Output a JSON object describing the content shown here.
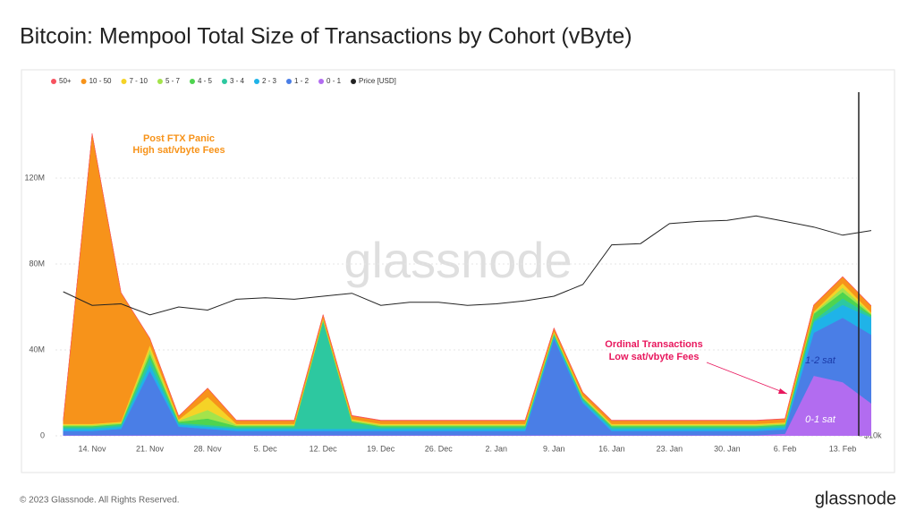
{
  "chart_data": {
    "type": "area",
    "title": "Bitcoin: Mempool Total Size of Transactions by Cohort (vByte)",
    "categories": [
      null,
      "14. Nov",
      null,
      "21. Nov",
      null,
      "28. Nov",
      null,
      "5. Dec",
      null,
      "12. Dec",
      null,
      "19. Dec",
      null,
      "26. Dec",
      null,
      "2. Jan",
      null,
      "9. Jan",
      null,
      "16. Jan",
      null,
      "23. Jan",
      null,
      "30. Jan",
      null,
      "6. Feb",
      null,
      "13. Feb",
      null
    ],
    "series": [
      {
        "name": "50+",
        "color": "#f7525f",
        "values": [
          200000,
          200000,
          200000,
          200000,
          200000,
          200000,
          200000,
          200000,
          200000,
          200000,
          200000,
          200000,
          200000,
          200000,
          200000,
          200000,
          200000,
          200000,
          200000,
          200000,
          200000,
          200000,
          200000,
          200000,
          200000,
          200000,
          200000,
          200000,
          200000
        ]
      },
      {
        "name": "10 - 50",
        "color": "#f7931a",
        "values": [
          1500000,
          135000000,
          60000000,
          3000000,
          1500000,
          4000000,
          1500000,
          1500000,
          1500000,
          1500000,
          1500000,
          1500000,
          1500000,
          1500000,
          1500000,
          1500000,
          1500000,
          1500000,
          1500000,
          1500000,
          1500000,
          1500000,
          1500000,
          1500000,
          1500000,
          1500000,
          3000000,
          3000000,
          3000000
        ]
      },
      {
        "name": "7 - 10",
        "color": "#f5d327",
        "values": [
          500000,
          500000,
          500000,
          2000000,
          500000,
          6000000,
          500000,
          500000,
          500000,
          500000,
          500000,
          500000,
          500000,
          500000,
          500000,
          500000,
          500000,
          500000,
          500000,
          500000,
          500000,
          500000,
          500000,
          500000,
          500000,
          500000,
          500000,
          2000000,
          500000
        ]
      },
      {
        "name": "5 - 7",
        "color": "#a4e34b",
        "values": [
          500000,
          500000,
          500000,
          2000000,
          500000,
          4000000,
          500000,
          500000,
          500000,
          500000,
          500000,
          500000,
          500000,
          500000,
          500000,
          500000,
          500000,
          500000,
          500000,
          500000,
          500000,
          500000,
          500000,
          500000,
          500000,
          500000,
          500000,
          2000000,
          500000
        ]
      },
      {
        "name": "4 - 5",
        "color": "#4ed44f",
        "values": [
          500000,
          500000,
          500000,
          2000000,
          500000,
          3000000,
          500000,
          500000,
          500000,
          500000,
          500000,
          500000,
          500000,
          500000,
          500000,
          500000,
          500000,
          500000,
          500000,
          500000,
          500000,
          500000,
          500000,
          500000,
          500000,
          500000,
          3000000,
          3000000,
          500000
        ]
      },
      {
        "name": "3 - 4",
        "color": "#2dc8a0",
        "values": [
          800000,
          800000,
          800000,
          3000000,
          800000,
          800000,
          800000,
          800000,
          800000,
          50000000,
          3000000,
          800000,
          800000,
          800000,
          800000,
          800000,
          800000,
          800000,
          800000,
          800000,
          800000,
          800000,
          800000,
          800000,
          800000,
          800000,
          800000,
          3000000,
          800000
        ]
      },
      {
        "name": "2 - 3",
        "color": "#1fb3e8",
        "values": [
          1000000,
          1000000,
          1000000,
          3000000,
          1000000,
          1000000,
          1000000,
          1000000,
          1000000,
          1000000,
          1000000,
          1000000,
          1000000,
          1000000,
          1000000,
          1000000,
          1000000,
          1000000,
          1000000,
          1000000,
          1000000,
          1000000,
          1000000,
          1000000,
          1000000,
          1000000,
          5000000,
          6000000,
          8000000
        ]
      },
      {
        "name": "1 - 2",
        "color": "#4a7ee6",
        "values": [
          2000000,
          2000000,
          3000000,
          30000000,
          4000000,
          3000000,
          2000000,
          2000000,
          2000000,
          2000000,
          2000000,
          2000000,
          2000000,
          2000000,
          2000000,
          2000000,
          2000000,
          45000000,
          15000000,
          2000000,
          2000000,
          2000000,
          2000000,
          2000000,
          2000000,
          2000000,
          20000000,
          30000000,
          32000000
        ]
      },
      {
        "name": "0 - 1",
        "color": "#b26cf0",
        "values": [
          300000,
          300000,
          300000,
          300000,
          300000,
          300000,
          300000,
          300000,
          300000,
          300000,
          300000,
          300000,
          300000,
          300000,
          300000,
          300000,
          300000,
          300000,
          300000,
          300000,
          300000,
          300000,
          300000,
          300000,
          300000,
          1000000,
          28000000,
          25000000,
          15000000
        ]
      },
      {
        "name": "Price [USD]",
        "color": "#222222",
        "axis": "y2",
        "values": [
          17500,
          16600,
          16700,
          16000,
          16500,
          16300,
          17000,
          17100,
          17000,
          17200,
          17400,
          16600,
          16800,
          16800,
          16600,
          16700,
          16900,
          17200,
          18000,
          21000,
          21100,
          22800,
          23000,
          23100,
          23500,
          23000,
          22500,
          21800,
          22200
        ]
      }
    ],
    "ylim": [
      0,
      160000000
    ],
    "yticks": [
      0,
      {
        "value": 40000000,
        "label": "40M"
      },
      {
        "value": 80000000,
        "label": "80M"
      },
      {
        "value": 120000000,
        "label": "120M"
      }
    ],
    "y2lim": [
      10000,
      38000
    ],
    "y2log": true,
    "y2ticks": [
      {
        "value": 10000,
        "label": "$10k"
      }
    ],
    "grid": true,
    "annotations": [
      {
        "text": "Post FTX Panic",
        "color": "#f7931a"
      },
      {
        "text": "High sat/vbyte Fees",
        "color": "#f7931a"
      },
      {
        "text": "Ordinal Transactions",
        "color": "#e8175d"
      },
      {
        "text": "Low sat/vbyte Fees",
        "color": "#e8175d"
      },
      {
        "text": "1-2 sat",
        "color": "#1a3aa8"
      },
      {
        "text": "0-1 sat",
        "color": "#ffffff"
      }
    ]
  },
  "watermark": "glassnode",
  "footer": {
    "copyright": "© 2023 Glassnode. All Rights Reserved.",
    "brand": "glassnode"
  }
}
